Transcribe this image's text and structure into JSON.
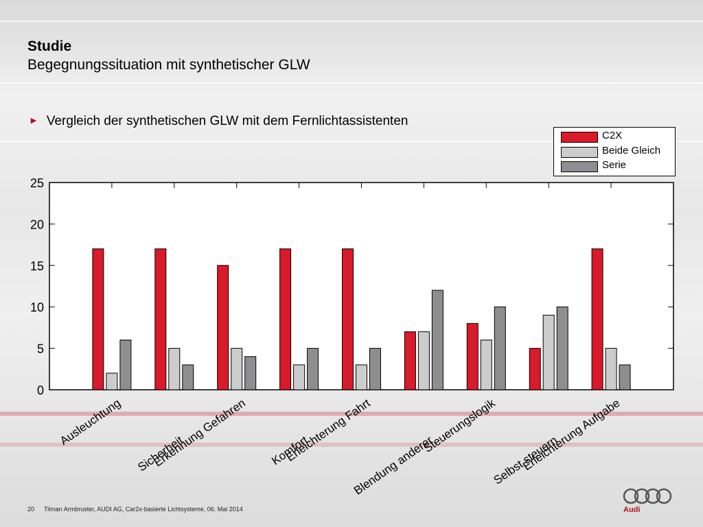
{
  "header": {
    "title": "Studie",
    "subtitle": "Begegnungssituation mit synthetischer GLW"
  },
  "bullet": {
    "icon": "triangle-right-icon",
    "text": "Vergleich der synthetischen GLW mit dem Fernlichtassistenten"
  },
  "colors": {
    "accent": "#b0101e",
    "c2x": "#d91a2a",
    "beide_gleich": "#cccccc",
    "serie": "#8e8e92"
  },
  "chart_data": {
    "type": "bar",
    "title": "",
    "xlabel": "",
    "ylabel": "",
    "ylim": [
      0,
      25
    ],
    "yticks": [
      "0",
      "5",
      "10",
      "15",
      "20",
      "25"
    ],
    "categories": [
      "Ausleuchtung",
      "Sicherheit",
      "Erkennung Gefahren",
      "Komfort",
      "Erleichterung Fahrt",
      "Blendung anderer",
      "Steuerungslogik",
      "Selbst steuern",
      "Erleichterung Aufgabe"
    ],
    "series": [
      {
        "name": "C2X",
        "values": [
          17,
          17,
          15,
          17,
          17,
          7,
          8,
          5,
          17
        ]
      },
      {
        "name": "Beide Gleich",
        "values": [
          2,
          5,
          5,
          3,
          3,
          7,
          6,
          9,
          5
        ]
      },
      {
        "name": "Serie",
        "values": [
          6,
          3,
          4,
          5,
          5,
          12,
          10,
          10,
          3
        ]
      }
    ],
    "legend_position": "top-right",
    "grid": false
  },
  "footer": {
    "page": "20",
    "text": "Tilman Armbruster, AUDI AG, Car2x-basierte Lichtsysteme, 06. Mai 2014"
  },
  "brand": {
    "logo": "Audi"
  }
}
